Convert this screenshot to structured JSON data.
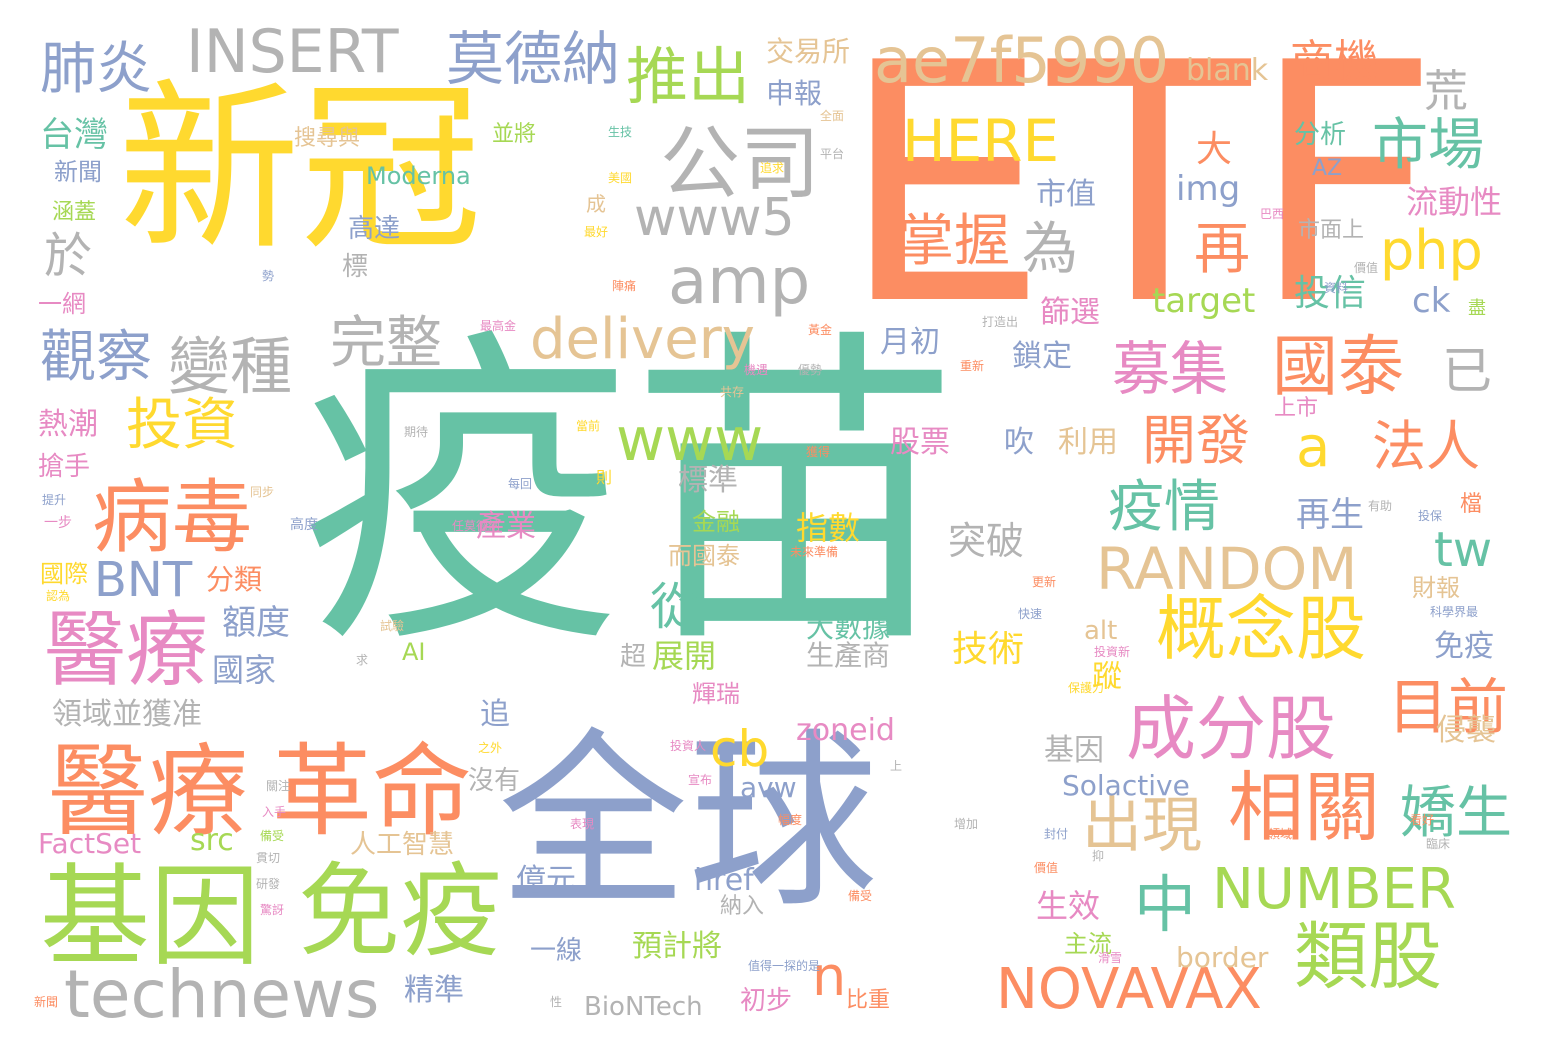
{
  "words": [
    {
      "text": "疫苗",
      "color": "#66c2a5"
    },
    {
      "text": "ETF",
      "color": "#fc8d62"
    },
    {
      "text": "新冠",
      "color": "#ffd92f"
    },
    {
      "text": "全球",
      "color": "#8da0cb"
    },
    {
      "text": "基因",
      "color": "#a6d854"
    },
    {
      "text": "免疫",
      "color": "#a6d854"
    },
    {
      "text": "革命",
      "color": "#fc8d62"
    },
    {
      "text": "醫療",
      "color": "#fc8d62"
    },
    {
      "text": "醫療",
      "color": "#e78ac3"
    },
    {
      "text": "病毒",
      "color": "#fc8d62"
    },
    {
      "text": "technews",
      "color": "#b3b3b3"
    },
    {
      "text": "ae7f5990",
      "color": "#e5c494"
    },
    {
      "text": "INSERT",
      "color": "#b3b3b3"
    },
    {
      "text": "公司",
      "color": "#b3b3b3"
    },
    {
      "text": "amp",
      "color": "#b3b3b3"
    },
    {
      "text": "www5",
      "color": "#b3b3b3"
    },
    {
      "text": "推出",
      "color": "#a6d854"
    },
    {
      "text": "莫德納",
      "color": "#8da0cb"
    },
    {
      "text": "肺炎",
      "color": "#8da0cb"
    },
    {
      "text": "HERE",
      "color": "#ffd92f"
    },
    {
      "text": "國泰",
      "color": "#fc8d62"
    },
    {
      "text": "市場",
      "color": "#66c2a5"
    },
    {
      "text": "荒",
      "color": "#b3b3b3"
    },
    {
      "text": "商機",
      "color": "#fc8d62"
    },
    {
      "text": "blank",
      "color": "#e5c494"
    },
    {
      "text": "php",
      "color": "#ffd92f"
    },
    {
      "text": "再",
      "color": "#fc8d62"
    },
    {
      "text": "為",
      "color": "#b3b3b3"
    },
    {
      "text": "掌握",
      "color": "#fc8d62"
    },
    {
      "text": "delivery",
      "color": "#e5c494"
    },
    {
      "text": "完整",
      "color": "#b3b3b3"
    },
    {
      "text": "變種",
      "color": "#b3b3b3"
    },
    {
      "text": "觀察",
      "color": "#8da0cb"
    },
    {
      "text": "投資",
      "color": "#ffd92f"
    },
    {
      "text": "募集",
      "color": "#e78ac3"
    },
    {
      "text": "已",
      "color": "#b3b3b3"
    },
    {
      "text": "www",
      "color": "#a6d854"
    },
    {
      "text": "a",
      "color": "#ffd92f"
    },
    {
      "text": "法人",
      "color": "#fc8d62"
    },
    {
      "text": "開發",
      "color": "#fc8d62"
    },
    {
      "text": "疫情",
      "color": "#66c2a5"
    },
    {
      "text": "tw",
      "color": "#66c2a5"
    },
    {
      "text": "RANDOM",
      "color": "#e5c494"
    },
    {
      "text": "概念股",
      "color": "#ffd92f"
    },
    {
      "text": "成分股",
      "color": "#e78ac3"
    },
    {
      "text": "目前",
      "color": "#fc8d62"
    },
    {
      "text": "相關",
      "color": "#fc8d62"
    },
    {
      "text": "出現",
      "color": "#e5c494"
    },
    {
      "text": "嬌生",
      "color": "#66c2a5"
    },
    {
      "text": "NUMBER",
      "color": "#a6d854"
    },
    {
      "text": "類股",
      "color": "#a6d854"
    },
    {
      "text": "中",
      "color": "#66c2a5"
    },
    {
      "text": "NOVAVAX",
      "color": "#fc8d62"
    },
    {
      "text": "cb",
      "color": "#ffd92f"
    },
    {
      "text": "從",
      "color": "#66c2a5"
    },
    {
      "text": "n",
      "color": "#fc8d62"
    },
    {
      "text": "BNT",
      "color": "#8da0cb"
    },
    {
      "text": "於",
      "color": "#b3b3b3"
    },
    {
      "text": "台灣",
      "color": "#66c2a5"
    },
    {
      "text": "新聞",
      "color": "#8da0cb"
    },
    {
      "text": "涵蓋",
      "color": "#a6d854"
    },
    {
      "text": "交易所",
      "color": "#e5c494"
    },
    {
      "text": "申報",
      "color": "#8da0cb"
    },
    {
      "text": "搜尋與",
      "color": "#e5c494"
    },
    {
      "text": "並將",
      "color": "#a6d854"
    },
    {
      "text": "Moderna",
      "color": "#66c2a5"
    },
    {
      "text": "高達",
      "color": "#8da0cb"
    },
    {
      "text": "標",
      "color": "#b3b3b3"
    },
    {
      "text": "一網",
      "color": "#e78ac3"
    },
    {
      "text": "大",
      "color": "#fc8d62"
    },
    {
      "text": "市值",
      "color": "#8da0cb"
    },
    {
      "text": "img",
      "color": "#8da0cb"
    },
    {
      "text": "分析",
      "color": "#66c2a5"
    },
    {
      "text": "AZ",
      "color": "#8da0cb"
    },
    {
      "text": "流動性",
      "color": "#e78ac3"
    },
    {
      "text": "市面上",
      "color": "#b3b3b3"
    },
    {
      "text": "投信",
      "color": "#66c2a5"
    },
    {
      "text": "target",
      "color": "#a6d854"
    },
    {
      "text": "ck",
      "color": "#8da0cb"
    },
    {
      "text": "篩選",
      "color": "#e78ac3"
    },
    {
      "text": "月初",
      "color": "#8da0cb"
    },
    {
      "text": "鎖定",
      "color": "#8da0cb"
    },
    {
      "text": "上市",
      "color": "#e78ac3"
    },
    {
      "text": "利用",
      "color": "#e5c494"
    },
    {
      "text": "吹",
      "color": "#8da0cb"
    },
    {
      "text": "股票",
      "color": "#e78ac3"
    },
    {
      "text": "熱潮",
      "color": "#e78ac3"
    },
    {
      "text": "搶手",
      "color": "#e78ac3"
    },
    {
      "text": "標準",
      "color": "#b3b3b3"
    },
    {
      "text": "產業",
      "color": "#e78ac3"
    },
    {
      "text": "金融",
      "color": "#a6d854"
    },
    {
      "text": "指數",
      "color": "#ffd92f"
    },
    {
      "text": "突破",
      "color": "#b3b3b3"
    },
    {
      "text": "再生",
      "color": "#8da0cb"
    },
    {
      "text": "分類",
      "color": "#fc8d62"
    },
    {
      "text": "國際",
      "color": "#ffd92f"
    },
    {
      "text": "額度",
      "color": "#8da0cb"
    },
    {
      "text": "大數據",
      "color": "#66c2a5"
    },
    {
      "text": "生產商",
      "color": "#b3b3b3"
    },
    {
      "text": "技術",
      "color": "#ffd92f"
    },
    {
      "text": "而國泰",
      "color": "#e5c494"
    },
    {
      "text": "展開",
      "color": "#a6d854"
    },
    {
      "text": "AI",
      "color": "#a6d854"
    },
    {
      "text": "國家",
      "color": "#8da0cb"
    },
    {
      "text": "超",
      "color": "#b3b3b3"
    },
    {
      "text": "免疫",
      "color": "#8da0cb"
    },
    {
      "text": "財報",
      "color": "#e5c494"
    },
    {
      "text": "alt",
      "color": "#e5c494"
    },
    {
      "text": "領域並獲准",
      "color": "#b3b3b3"
    },
    {
      "text": "輝瑞",
      "color": "#e78ac3"
    },
    {
      "text": "蹤",
      "color": "#ffd92f"
    },
    {
      "text": "追",
      "color": "#8da0cb"
    },
    {
      "text": "zoneid",
      "color": "#e78ac3"
    },
    {
      "text": "基因",
      "color": "#b3b3b3"
    },
    {
      "text": "侵襲",
      "color": "#e5c494"
    },
    {
      "text": "avw",
      "color": "#8da0cb"
    },
    {
      "text": "Solactive",
      "color": "#8da0cb"
    },
    {
      "text": "沒有",
      "color": "#b3b3b3"
    },
    {
      "text": "src",
      "color": "#a6d854"
    },
    {
      "text": "人工智慧",
      "color": "#e5c494"
    },
    {
      "text": "FactSet",
      "color": "#e78ac3"
    },
    {
      "text": "億元",
      "color": "#8da0cb"
    },
    {
      "text": "href",
      "color": "#8da0cb"
    },
    {
      "text": "生效",
      "color": "#e78ac3"
    },
    {
      "text": "主流",
      "color": "#a6d854"
    },
    {
      "text": "納入",
      "color": "#b3b3b3"
    },
    {
      "text": "預計將",
      "color": "#a6d854"
    },
    {
      "text": "一線",
      "color": "#8da0cb"
    },
    {
      "text": "border",
      "color": "#e5c494"
    },
    {
      "text": "精準",
      "color": "#8da0cb"
    },
    {
      "text": "初步",
      "color": "#e78ac3"
    },
    {
      "text": "比重",
      "color": "#fc8d62"
    },
    {
      "text": "BioNTech",
      "color": "#b3b3b3"
    },
    {
      "text": "生技",
      "color": "#66c2a5"
    },
    {
      "text": "美國",
      "color": "#ffd92f"
    },
    {
      "text": "追求",
      "color": "#ffd92f"
    },
    {
      "text": "成",
      "color": "#e5c494"
    },
    {
      "text": "最好",
      "color": "#ffd92f"
    },
    {
      "text": "平台",
      "color": "#b3b3b3"
    },
    {
      "text": "全面",
      "color": "#e5c494"
    },
    {
      "text": "勢",
      "color": "#8da0cb"
    },
    {
      "text": "陣痛",
      "color": "#fc8d62"
    },
    {
      "text": "最高金",
      "color": "#e78ac3"
    },
    {
      "text": "打造出",
      "color": "#b3b3b3"
    },
    {
      "text": "盡",
      "color": "#a6d854"
    },
    {
      "text": "巴西",
      "color": "#e78ac3"
    },
    {
      "text": "價值",
      "color": "#b3b3b3"
    },
    {
      "text": "資料",
      "color": "#8da0cb"
    },
    {
      "text": "黃金",
      "color": "#fc8d62"
    },
    {
      "text": "優勢",
      "color": "#b3b3b3"
    },
    {
      "text": "重新",
      "color": "#fc8d62"
    },
    {
      "text": "期待",
      "color": "#b3b3b3"
    },
    {
      "text": "當前",
      "color": "#ffd92f"
    },
    {
      "text": "獲得",
      "color": "#fc8d62"
    },
    {
      "text": "機遇",
      "color": "#e78ac3"
    },
    {
      "text": "共存",
      "color": "#e5c494"
    },
    {
      "text": "備受",
      "color": "#a6d854"
    },
    {
      "text": "檔",
      "color": "#fc8d62"
    },
    {
      "text": "提升",
      "color": "#8da0cb"
    },
    {
      "text": "一步",
      "color": "#e78ac3"
    },
    {
      "text": "同步",
      "color": "#e5c494"
    },
    {
      "text": "每回",
      "color": "#8da0cb"
    },
    {
      "text": "則",
      "color": "#ffd92f"
    },
    {
      "text": "高度",
      "color": "#8da0cb"
    },
    {
      "text": "任莫德納",
      "color": "#e78ac3"
    },
    {
      "text": "未來準備",
      "color": "#fc8d62"
    },
    {
      "text": "有助",
      "color": "#b3b3b3"
    },
    {
      "text": "投保",
      "color": "#8da0cb"
    },
    {
      "text": "認為",
      "color": "#ffd92f"
    },
    {
      "text": "科學界最",
      "color": "#8da0cb"
    },
    {
      "text": "試驗",
      "color": "#e5c494"
    },
    {
      "text": "更新",
      "color": "#fc8d62"
    },
    {
      "text": "快速",
      "color": "#8da0cb"
    },
    {
      "text": "求",
      "color": "#b3b3b3"
    },
    {
      "text": "投資新",
      "color": "#e78ac3"
    },
    {
      "text": "保護力",
      "color": "#ffd92f"
    },
    {
      "text": "投資人",
      "color": "#e78ac3"
    },
    {
      "text": "之外",
      "color": "#ffd92f"
    },
    {
      "text": "上",
      "color": "#b3b3b3"
    },
    {
      "text": "關注",
      "color": "#b3b3b3"
    },
    {
      "text": "入手",
      "color": "#e78ac3"
    },
    {
      "text": "宣布",
      "color": "#e78ac3"
    },
    {
      "text": "表現",
      "color": "#e78ac3"
    },
    {
      "text": "幅度",
      "color": "#fc8d62"
    },
    {
      "text": "看好",
      "color": "#fc8d62"
    },
    {
      "text": "增加",
      "color": "#b3b3b3"
    },
    {
      "text": "封付",
      "color": "#8da0cb"
    },
    {
      "text": "貫切",
      "color": "#b3b3b3"
    },
    {
      "text": "研發",
      "color": "#b3b3b3"
    },
    {
      "text": "備受",
      "color": "#fc8d62"
    },
    {
      "text": "驚訝",
      "color": "#e78ac3"
    },
    {
      "text": "新聞",
      "color": "#fc8d62"
    },
    {
      "text": "臨床",
      "color": "#b3b3b3"
    },
    {
      "text": "價值",
      "color": "#fc8d62"
    },
    {
      "text": "值得一探的是",
      "color": "#8da0cb"
    },
    {
      "text": "性",
      "color": "#b3b3b3"
    },
    {
      "text": "滑雪",
      "color": "#e78ac3"
    },
    {
      "text": "抑",
      "color": "#b3b3b3"
    },
    {
      "text": "領域",
      "color": "#fc8d62"
    },
    {
      "text": "未來",
      "color": "#e78ac3"
    }
  ]
}
